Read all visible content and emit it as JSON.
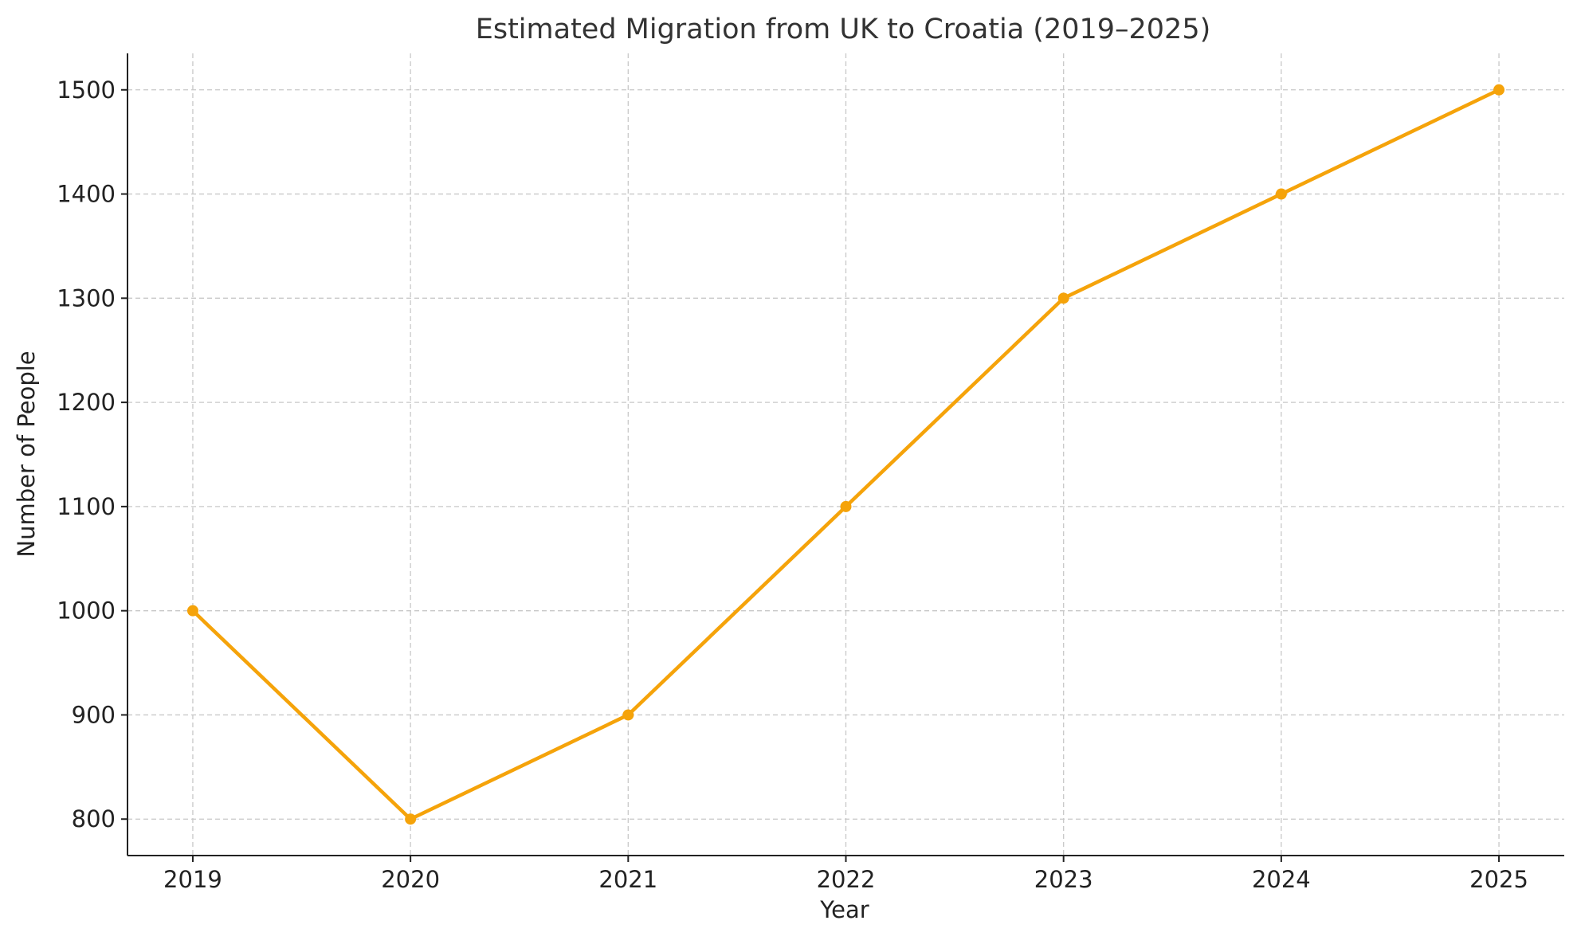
{
  "chart_data": {
    "type": "line",
    "title": "Estimated Migration from UK to Croatia (2019–2025)",
    "xlabel": "Year",
    "ylabel": "Number of People",
    "x": [
      2019,
      2020,
      2021,
      2022,
      2023,
      2024,
      2025
    ],
    "x_tick_labels": [
      "2019",
      "2020",
      "2021",
      "2022",
      "2023",
      "2024",
      "2025"
    ],
    "y_ticks": [
      800,
      900,
      1000,
      1100,
      1200,
      1300,
      1400,
      1500
    ],
    "y_tick_labels": [
      "800",
      "900",
      "1000",
      "1100",
      "1200",
      "1300",
      "1400",
      "1500"
    ],
    "xlim": [
      2018.7,
      2025.3
    ],
    "ylim": [
      765,
      1535
    ],
    "grid": true,
    "legend": "none",
    "series": [
      {
        "values": [
          1000,
          800,
          900,
          1100,
          1300,
          1400,
          1500
        ],
        "color": "#f5a30a",
        "marker": "circle"
      }
    ]
  }
}
